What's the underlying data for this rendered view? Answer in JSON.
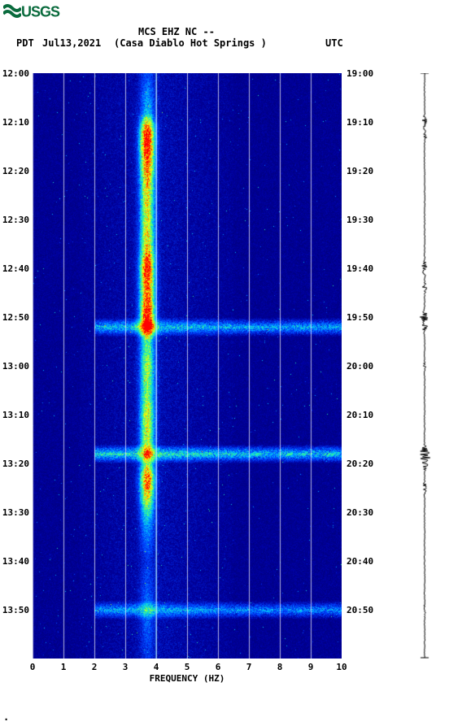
{
  "logo_text": "USGS",
  "header": {
    "line1": "MCS EHZ NC --",
    "pdt": "PDT",
    "date": "Jul13,2021",
    "station": "(Casa Diablo Hot Springs )",
    "utc": "UTC"
  },
  "spectrogram": {
    "type": "heatmap",
    "xlim": [
      0,
      10
    ],
    "ylim_minutes": [
      0,
      120
    ],
    "xlabel": "FREQUENCY (HZ)",
    "xtick_step": 1,
    "left_time_ticks": [
      "12:00",
      "12:10",
      "12:20",
      "12:30",
      "12:40",
      "12:50",
      "13:00",
      "13:10",
      "13:20",
      "13:30",
      "13:40",
      "13:50"
    ],
    "right_time_ticks": [
      "19:00",
      "19:10",
      "19:20",
      "19:30",
      "19:40",
      "19:50",
      "20:00",
      "20:10",
      "20:20",
      "20:30",
      "20:40",
      "20:50"
    ],
    "tick_minute_positions": [
      0,
      10,
      20,
      30,
      40,
      50,
      60,
      70,
      80,
      90,
      100,
      110
    ],
    "background_color": "#00008b",
    "colormap": [
      {
        "v": 0.0,
        "c": "#00006b"
      },
      {
        "v": 0.15,
        "c": "#0000a0"
      },
      {
        "v": 0.3,
        "c": "#0040ff"
      },
      {
        "v": 0.45,
        "c": "#00c0ff"
      },
      {
        "v": 0.6,
        "c": "#40ff80"
      },
      {
        "v": 0.75,
        "c": "#ffff00"
      },
      {
        "v": 0.9,
        "c": "#ff8000"
      },
      {
        "v": 1.0,
        "c": "#ff0000"
      }
    ],
    "grid_color": "#ffffff",
    "grid_width": 1,
    "gridline_hz": [
      0,
      1,
      2,
      3,
      4,
      5,
      6,
      7,
      8,
      9,
      10
    ],
    "marker_line_hz": 4,
    "marker_line_color": "#88ddff",
    "seed": 42,
    "spectral_features": {
      "ridge_center_hz": 3.7,
      "ridge_width_hz": 0.3,
      "ridge_intensity_profile": [
        {
          "min": 0,
          "amp": 0.15
        },
        {
          "min": 8,
          "amp": 0.3
        },
        {
          "min": 12,
          "amp": 0.95
        },
        {
          "min": 15,
          "amp": 0.98
        },
        {
          "min": 18,
          "amp": 0.85
        },
        {
          "min": 22,
          "amp": 0.7
        },
        {
          "min": 28,
          "amp": 0.6
        },
        {
          "min": 35,
          "amp": 0.65
        },
        {
          "min": 40,
          "amp": 0.95
        },
        {
          "min": 45,
          "amp": 0.8
        },
        {
          "min": 50,
          "amp": 0.97
        },
        {
          "min": 52,
          "amp": 0.9
        },
        {
          "min": 55,
          "amp": 0.45
        },
        {
          "min": 60,
          "amp": 0.55
        },
        {
          "min": 65,
          "amp": 0.5
        },
        {
          "min": 70,
          "amp": 0.6
        },
        {
          "min": 78,
          "amp": 0.55
        },
        {
          "min": 80,
          "amp": 0.5
        },
        {
          "min": 83,
          "amp": 0.85
        },
        {
          "min": 86,
          "amp": 0.7
        },
        {
          "min": 90,
          "amp": 0.4
        },
        {
          "min": 93,
          "amp": 0.25
        },
        {
          "min": 100,
          "amp": 0.1
        },
        {
          "min": 110,
          "amp": 0.2
        },
        {
          "min": 120,
          "amp": 0.1
        }
      ],
      "broadband_bands": [
        {
          "min": 52,
          "width": 2,
          "amp": 0.35,
          "from_hz": 2,
          "to_hz": 10
        },
        {
          "min": 78,
          "width": 2,
          "amp": 0.4,
          "from_hz": 2,
          "to_hz": 10
        },
        {
          "min": 110,
          "width": 2,
          "amp": 0.3,
          "from_hz": 2,
          "to_hz": 10
        }
      ],
      "noise_floor": 0.12
    }
  },
  "waveform": {
    "color": "#000000",
    "baseline_width": 2,
    "events": [
      {
        "min": 10,
        "amp": 4
      },
      {
        "min": 13,
        "amp": 3
      },
      {
        "min": 40,
        "amp": 5
      },
      {
        "min": 44,
        "amp": 3
      },
      {
        "min": 50,
        "amp": 6
      },
      {
        "min": 52,
        "amp": 4
      },
      {
        "min": 60,
        "amp": 2
      },
      {
        "min": 78,
        "amp": 12
      },
      {
        "min": 80,
        "amp": 5
      },
      {
        "min": 85,
        "amp": 3
      },
      {
        "min": 110,
        "amp": 2
      }
    ]
  },
  "footer_dot": "."
}
